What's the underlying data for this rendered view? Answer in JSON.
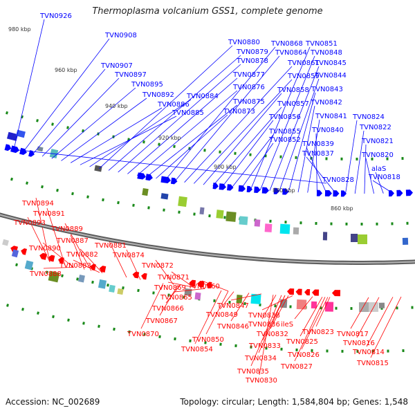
{
  "title": "Thermoplasma volcanium GSS1, complete genome",
  "footer": {
    "accession": "Accession: NC_002689",
    "summary": "Topology: circular; Length: 1,584,804 bp; Genes: 1,548"
  },
  "colors": {
    "forward_strand": "#0000ff",
    "reverse_strand": "#ff0000",
    "backbone": "#888888"
  },
  "scale_labels": [
    "980 kbp",
    "960 kbp",
    "940 kbp",
    "920 kbp",
    "900 kbp",
    "880 kbp",
    "860 kbp"
  ],
  "forward_genes": [
    "TVN0926",
    "TVN0908",
    "TVN0907",
    "TVN0897",
    "TVN0895",
    "TVN0892",
    "TVN0886",
    "TVN0885",
    "TVN0884",
    "TVN0880",
    "TVN0879",
    "TVN0878",
    "TVN0877",
    "TVN0876",
    "TVN0875",
    "TVN0873",
    "TVN0868",
    "TVN0864",
    "TVN0861",
    "TVN0859",
    "TVN0858",
    "TVN0857",
    "TVN0856",
    "TVN0855",
    "TVN0852",
    "TVN0851",
    "TVN0848",
    "TVN0845",
    "TVN0844",
    "TVN0843",
    "TVN0842",
    "TVN0841",
    "TVN0840",
    "TVN0839",
    "TVN0837",
    "TVN0824",
    "TVN0822",
    "TVN0821",
    "TVN0820",
    "alaS",
    "TVN0818",
    "TVN0828"
  ],
  "reverse_genes": [
    "TVN0894",
    "TVN0891",
    "TVN0893",
    "TVN0889",
    "TVN0890",
    "TVN0887",
    "TVN0881",
    "TVN0882",
    "TVN0883",
    "TVN0888",
    "TVN0874",
    "TVN0872",
    "TVN0871",
    "TVN0869",
    "TVN0865",
    "TVN0866",
    "TVN0867",
    "TVN0870",
    "TVN0860",
    "TVN0847",
    "TVN0849",
    "TVN0846",
    "TVN0850",
    "TVN0854",
    "TVN0838",
    "TVN0836",
    "TVN0832",
    "TVN0833",
    "TVN0834",
    "TVN0835",
    "TVN0830",
    "ileS",
    "TVN0825",
    "TVN0826",
    "TVN0827",
    "TVN0823",
    "TVN0817",
    "TVN0816",
    "TVN0814",
    "TVN0815"
  ]
}
